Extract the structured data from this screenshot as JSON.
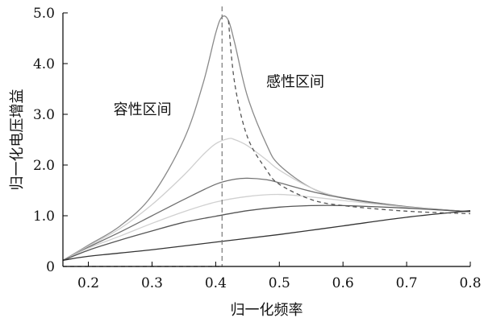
{
  "chart_data": {
    "type": "line",
    "title": "",
    "xlabel": "归一化频率",
    "ylabel": "归一化电压增益",
    "xlim": [
      0.16,
      0.8
    ],
    "ylim": [
      0,
      5.0
    ],
    "x_ticks": [
      0.2,
      0.3,
      0.4,
      0.5,
      0.6,
      0.7,
      0.8
    ],
    "x_tick_labels": [
      "0.2",
      "0.3",
      "0.4",
      "0.5",
      "0.6",
      "0.7",
      "0.8"
    ],
    "y_ticks": [
      0,
      1.0,
      2.0,
      3.0,
      4.0,
      5.0
    ],
    "y_tick_labels": [
      "0",
      "1.0",
      "2.0",
      "3.0",
      "4.0",
      "5.0"
    ],
    "grid": false,
    "annotations": [
      {
        "text": "容性区间",
        "x": 0.285,
        "y": 3.0
      },
      {
        "text": "感性区间",
        "x": 0.525,
        "y": 3.55
      }
    ],
    "reference_lines": [
      {
        "orientation": "vertical",
        "x": 0.41,
        "style": "dashed",
        "color": "#777777"
      }
    ],
    "series": [
      {
        "color": "#8a8a8a",
        "style": "solid",
        "x": [
          0.16,
          0.2,
          0.25,
          0.3,
          0.35,
          0.38,
          0.4,
          0.41,
          0.42,
          0.43,
          0.45,
          0.48,
          0.5,
          0.55,
          0.6,
          0.7,
          0.8
        ],
        "y": [
          0.12,
          0.42,
          0.8,
          1.4,
          2.5,
          3.6,
          4.6,
          4.92,
          4.85,
          4.4,
          3.35,
          2.4,
          2.0,
          1.55,
          1.35,
          1.17,
          1.08
        ]
      },
      {
        "color": "#cfcfcf",
        "style": "solid",
        "x": [
          0.16,
          0.2,
          0.25,
          0.3,
          0.35,
          0.38,
          0.4,
          0.42,
          0.43,
          0.45,
          0.48,
          0.5,
          0.55,
          0.6,
          0.7,
          0.8
        ],
        "y": [
          0.12,
          0.4,
          0.75,
          1.22,
          1.8,
          2.2,
          2.42,
          2.52,
          2.5,
          2.38,
          2.1,
          1.9,
          1.55,
          1.36,
          1.18,
          1.08
        ]
      },
      {
        "color": "#707070",
        "style": "solid",
        "x": [
          0.16,
          0.2,
          0.25,
          0.3,
          0.35,
          0.4,
          0.43,
          0.45,
          0.48,
          0.5,
          0.55,
          0.6,
          0.7,
          0.8
        ],
        "y": [
          0.12,
          0.38,
          0.68,
          1.0,
          1.32,
          1.62,
          1.72,
          1.74,
          1.71,
          1.65,
          1.48,
          1.35,
          1.18,
          1.08
        ]
      },
      {
        "color": "#d0d0d0",
        "style": "solid",
        "x": [
          0.16,
          0.2,
          0.25,
          0.3,
          0.35,
          0.4,
          0.45,
          0.5,
          0.55,
          0.6,
          0.7,
          0.8
        ],
        "y": [
          0.12,
          0.36,
          0.6,
          0.85,
          1.08,
          1.27,
          1.38,
          1.42,
          1.37,
          1.3,
          1.17,
          1.08
        ]
      },
      {
        "color": "#555555",
        "style": "solid",
        "x": [
          0.16,
          0.2,
          0.25,
          0.3,
          0.35,
          0.4,
          0.45,
          0.5,
          0.55,
          0.6,
          0.7,
          0.8
        ],
        "y": [
          0.12,
          0.32,
          0.52,
          0.7,
          0.87,
          0.99,
          1.1,
          1.17,
          1.2,
          1.2,
          1.15,
          1.08
        ]
      },
      {
        "color": "#333333",
        "style": "solid",
        "x": [
          0.16,
          0.2,
          0.3,
          0.4,
          0.5,
          0.6,
          0.7,
          0.8
        ],
        "y": [
          0.12,
          0.2,
          0.33,
          0.48,
          0.63,
          0.8,
          0.97,
          1.1
        ]
      },
      {
        "color": "#555555",
        "style": "dashed",
        "x": [
          0.16,
          0.25,
          0.3,
          0.35,
          0.38,
          0.4,
          0.405,
          0.41,
          0.42,
          0.43,
          0.45,
          0.48,
          0.5,
          0.55,
          0.6,
          0.7,
          0.8
        ],
        "y": [
          0.0,
          0.0,
          0.0,
          0.0,
          0.0,
          0.0,
          0.0,
          0.0,
          4.85,
          3.6,
          2.55,
          1.9,
          1.62,
          1.32,
          1.2,
          1.09,
          1.04
        ]
      }
    ]
  }
}
